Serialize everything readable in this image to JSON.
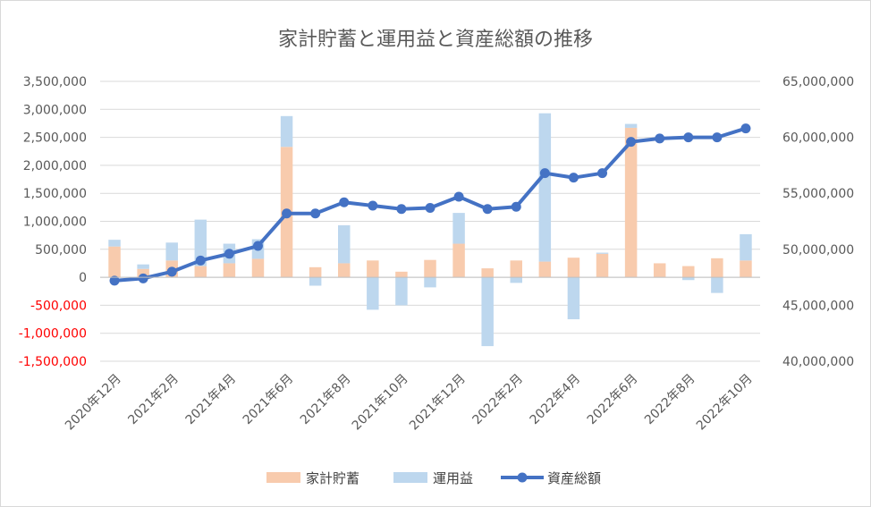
{
  "chart_data": {
    "type": "bar",
    "subtype": "stacked bar with line on secondary axis",
    "title": "家計貯蓄と運用益と資産総額の推移",
    "categories": [
      "2020年12月",
      "2021年1月",
      "2021年2月",
      "2021年3月",
      "2021年4月",
      "2021年5月",
      "2021年6月",
      "2021年7月",
      "2021年8月",
      "2021年9月",
      "2021年10月",
      "2021年11月",
      "2021年12月",
      "2022年1月",
      "2022年2月",
      "2022年3月",
      "2022年4月",
      "2022年5月",
      "2022年6月",
      "2022年7月",
      "2022年8月",
      "2022年9月",
      "2022年10月"
    ],
    "x_tick_labels": [
      "2020年12月",
      "2021年2月",
      "2021年4月",
      "2021年6月",
      "2021年8月",
      "2021年10月",
      "2021年12月",
      "2022年2月",
      "2022年4月",
      "2022年6月",
      "2022年8月",
      "2022年10月"
    ],
    "primary_axis": {
      "ylim": [
        -1500000,
        3500000
      ],
      "tick_labels": [
        "3,500,000",
        "3,000,000",
        "2,500,000",
        "2,000,000",
        "1,500,000",
        "1,000,000",
        "500,000",
        "0",
        "-500,000",
        "-1,000,000",
        "-1,500,000"
      ],
      "negative_color": "#ff0000"
    },
    "secondary_axis": {
      "ylim": [
        40000000,
        65000000
      ],
      "tick_labels": [
        "65,000,000",
        "60,000,000",
        "55,000,000",
        "50,000,000",
        "45,000,000",
        "40,000,000"
      ]
    },
    "series": [
      {
        "name": "家計貯蓄",
        "kind": "bar",
        "axis": "primary",
        "color": "#f8cbad",
        "values": [
          550000,
          150000,
          300000,
          200000,
          250000,
          330000,
          2330000,
          180000,
          250000,
          300000,
          100000,
          310000,
          600000,
          160000,
          300000,
          280000,
          350000,
          420000,
          2670000,
          250000,
          200000,
          340000,
          300000
        ]
      },
      {
        "name": "運用益",
        "kind": "bar",
        "axis": "primary",
        "color": "#bdd7ee",
        "values": [
          120000,
          80000,
          320000,
          830000,
          350000,
          350000,
          550000,
          -150000,
          680000,
          -580000,
          -500000,
          -180000,
          550000,
          -1230000,
          -100000,
          2650000,
          -750000,
          20000,
          70000,
          0,
          -50000,
          -280000,
          470000
        ]
      },
      {
        "name": "資産総額",
        "kind": "line",
        "axis": "secondary",
        "color": "#4472c4",
        "values": [
          47200000,
          47400000,
          48000000,
          49000000,
          49600000,
          50300000,
          53200000,
          53200000,
          54200000,
          53900000,
          53600000,
          53700000,
          54700000,
          53600000,
          53800000,
          56800000,
          56400000,
          56800000,
          59600000,
          59900000,
          60000000,
          60000000,
          60800000
        ]
      }
    ],
    "legend": {
      "position": "bottom",
      "entries": [
        "家計貯蓄",
        "運用益",
        "資産総額"
      ]
    },
    "grid": true
  }
}
